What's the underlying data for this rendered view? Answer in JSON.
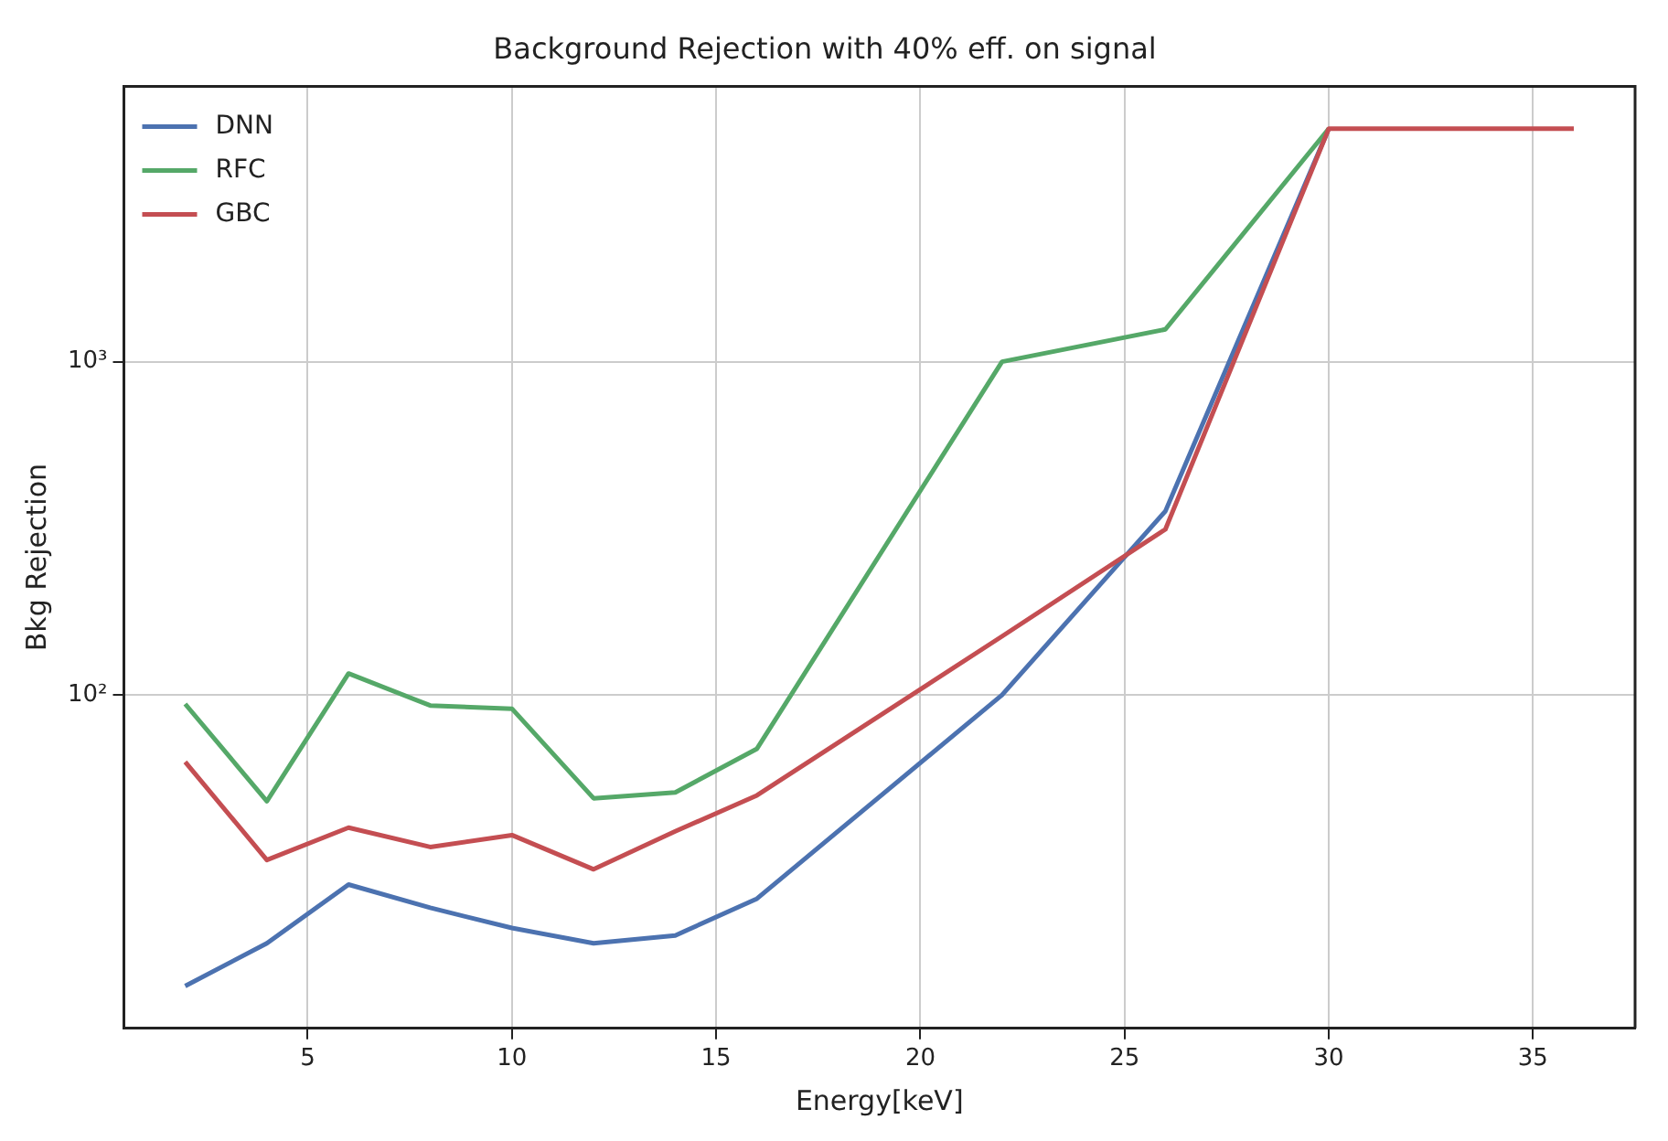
{
  "chart_data": {
    "type": "line",
    "title": "Background Rejection with 40% eff. on signal",
    "xlabel": "Energy[keV]",
    "ylabel": "Bkg Rejection",
    "log": "y",
    "grid": true,
    "legend": "top left",
    "marker": "none",
    "line_style": "solid",
    "x": [
      2,
      4,
      6,
      8,
      10,
      12,
      14,
      16,
      22,
      26,
      30,
      36
    ],
    "xlim": [
      0.5,
      37.5
    ],
    "xticks": [
      5,
      10,
      15,
      20,
      25,
      30,
      35
    ],
    "ylim": [
      10,
      6700
    ],
    "yticks": [
      {
        "value": 100,
        "label": "10²"
      },
      {
        "value": 1000,
        "label": "10³"
      }
    ],
    "series": [
      {
        "name": "DNN",
        "color": "#4c72b0",
        "values": [
          13.4,
          18,
          27,
          23,
          20,
          18,
          19,
          24.5,
          100,
          356,
          5000,
          null
        ]
      },
      {
        "name": "RFC",
        "color": "#55a868",
        "values": [
          94,
          48,
          116,
          93,
          91,
          49,
          51,
          69,
          1000,
          1250,
          5000,
          null
        ]
      },
      {
        "name": "GBC",
        "color": "#c44e52",
        "values": [
          63,
          32,
          40,
          35,
          38,
          30,
          39,
          50,
          150,
          314,
          5000,
          5000
        ]
      }
    ]
  }
}
